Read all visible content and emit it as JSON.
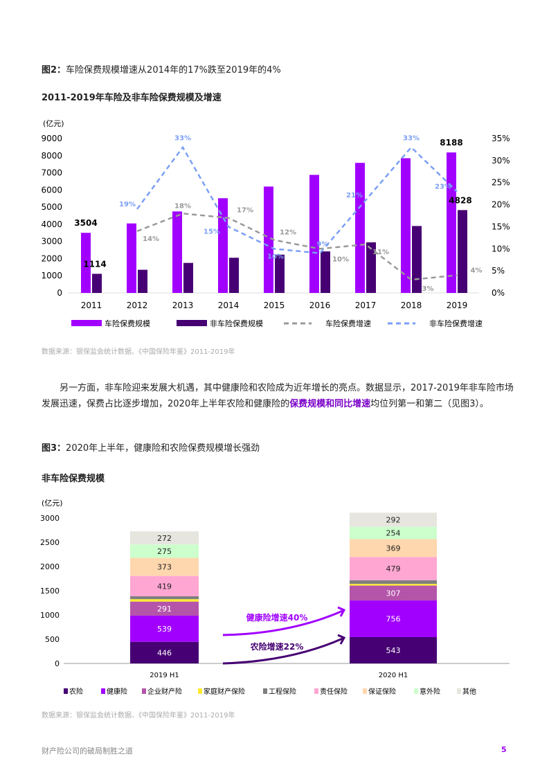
{
  "fig2": {
    "label": "图2：",
    "title": "车险保费规模增速从2014年的17%跌至2019年的4%",
    "subtitle": "2011-2019年车险及非车险保费规模及增速",
    "source": "数据来源：银保监会统计数据、《中国保险年鉴》2011-2019年"
  },
  "paragraph": {
    "text1": "另一方面，非车险迎来发展大机遇，其中健康险和农险成为近年增长的亮点。数据显示，2017-2019年非车险市场发展迅速，保费占比逐步增加，2020年上半年农险和健康险的",
    "highlight": "保费规模和同比增速",
    "text2": "均位列第一和第二（见图3）。"
  },
  "fig3": {
    "label": "图3：",
    "title": "2020年上半年，健康险和农险保费规模增长强劲",
    "subtitle": "非车险保费规模",
    "source": "数据来源：银保监会统计数据、《中国保险年鉴》2011-2019年"
  },
  "footer": {
    "title": "财产险公司的破局制胜之道",
    "page": "5"
  },
  "chart_data": [
    {
      "type": "bar+line",
      "unit": "(亿元)",
      "categories": [
        "2011",
        "2012",
        "2013",
        "2014",
        "2015",
        "2016",
        "2017",
        "2018",
        "2019"
      ],
      "ylim": [
        0,
        9000
      ],
      "yticks": [
        "0",
        "1000",
        "2000",
        "3000",
        "4000",
        "5000",
        "6000",
        "7000",
        "8000",
        "9000"
      ],
      "y2lim": [
        0,
        35
      ],
      "y2ticks": [
        "0%",
        "5%",
        "10%",
        "15%",
        "20%",
        "25%",
        "30%",
        "35%"
      ],
      "series": [
        {
          "name": "车险保费规模",
          "kind": "bar",
          "color": "#a100ff",
          "values": [
            3504,
            4050,
            4750,
            5520,
            6200,
            6880,
            7580,
            7850,
            8188
          ],
          "labels": {
            "0": "3504",
            "8": "8188"
          }
        },
        {
          "name": "非车险保费规模",
          "kind": "bar",
          "color": "#460073",
          "values": [
            1114,
            1350,
            1750,
            2050,
            2230,
            2420,
            2950,
            3900,
            4828
          ],
          "labels": {
            "0": "1114",
            "8": "4828"
          }
        },
        {
          "name": "车险保费增速",
          "kind": "line",
          "color": "#999999",
          "values": [
            null,
            14,
            18,
            17,
            12,
            10,
            11,
            3,
            4
          ]
        },
        {
          "name": "非车险保费增速",
          "kind": "line",
          "color": "#7b9ff5",
          "values": [
            null,
            19,
            33,
            15,
            10,
            9,
            21,
            33,
            23
          ]
        }
      ],
      "legend": "bottom"
    },
    {
      "type": "stacked-bar",
      "unit": "(亿元)",
      "categories": [
        "2019 H1",
        "2020 H1"
      ],
      "ylim": [
        0,
        3000
      ],
      "yticks": [
        "0",
        "500",
        "1000",
        "1500",
        "2000",
        "2500",
        "3000"
      ],
      "series": [
        {
          "name": "农险",
          "color": "#460073",
          "values": [
            446,
            543
          ],
          "label_color": "#fff",
          "show": true
        },
        {
          "name": "健康险",
          "color": "#a100ff",
          "values": [
            539,
            756
          ],
          "label_color": "#fff",
          "show": true
        },
        {
          "name": "企业财产险",
          "color": "#b455aa",
          "values": [
            291,
            307
          ],
          "label_color": "#fff",
          "show": true
        },
        {
          "name": "家庭财产保险",
          "color": "#ffeb32",
          "values": [
            50,
            35
          ],
          "show": false
        },
        {
          "name": "工程保险",
          "color": "#7f7f7f",
          "values": [
            60,
            75
          ],
          "show": false
        },
        {
          "name": "责任保险",
          "color": "#ffa6d2",
          "values": [
            419,
            479
          ],
          "label_color": "#222",
          "show": true
        },
        {
          "name": "保证保险",
          "color": "#ffd7ae",
          "values": [
            373,
            369
          ],
          "label_color": "#222",
          "show": true
        },
        {
          "name": "意外险",
          "color": "#ccffcc",
          "values": [
            275,
            254
          ],
          "label_color": "#222",
          "show": true
        },
        {
          "name": "其他",
          "color": "#e6e6df",
          "values": [
            272,
            292
          ],
          "label_color": "#222",
          "show": true
        }
      ],
      "annotations": [
        {
          "text": "健康险增速40%",
          "color": "#a100ff"
        },
        {
          "text": "农险增速22%",
          "color": "#460073"
        }
      ],
      "legend": "bottom"
    }
  ]
}
